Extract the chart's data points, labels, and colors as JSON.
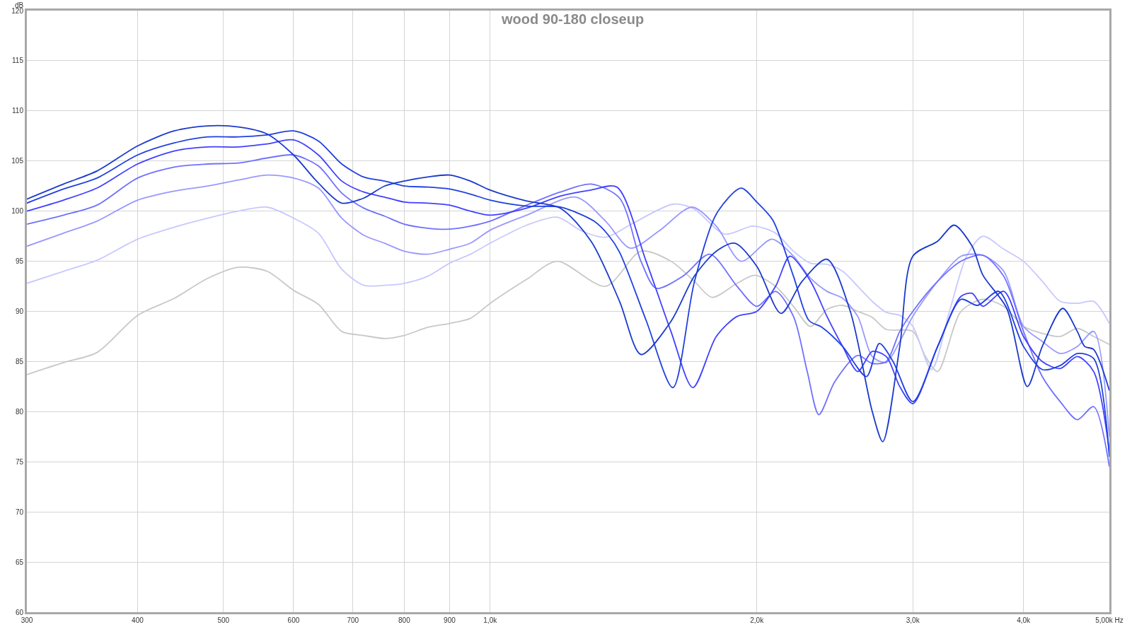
{
  "chart_data": {
    "type": "line",
    "title": "wood 90-180 closeup",
    "ylabel": "dB",
    "log": "x",
    "grid": true,
    "marker": "none",
    "line_style": "solid",
    "xlim": [
      300,
      5000
    ],
    "ylim": [
      60,
      120
    ],
    "xticks": [
      300,
      400,
      500,
      600,
      700,
      800,
      900,
      {
        "value": 1000,
        "label": "1,0k"
      },
      {
        "value": 2000,
        "label": "2,0k"
      },
      {
        "value": 3000,
        "label": "3,0k"
      },
      {
        "value": 4000,
        "label": "4,0k"
      },
      {
        "value": 5000,
        "label": "5,00k Hz"
      }
    ],
    "yticks": [
      60,
      65,
      70,
      75,
      80,
      85,
      90,
      95,
      100,
      105,
      110,
      115,
      120
    ],
    "series": [
      {
        "color": "#c8c8c8",
        "x": [
          300,
          330,
          360,
          400,
          440,
          480,
          520,
          560,
          600,
          640,
          680,
          720,
          760,
          800,
          850,
          900,
          950,
          1000,
          1100,
          1190,
          1350,
          1480,
          1600,
          1700,
          1780,
          1900,
          1990,
          2100,
          2200,
          2300,
          2400,
          2500,
          2600,
          2700,
          2800,
          3000,
          3100,
          3200,
          3400,
          3600,
          3800,
          4000,
          4200,
          4400,
          4600,
          4800,
          5000
        ],
        "values": [
          83.7,
          84.9,
          85.9,
          89.6,
          91.3,
          93.3,
          94.4,
          94.0,
          92.1,
          90.7,
          88.0,
          87.6,
          87.3,
          87.6,
          88.4,
          88.8,
          89.3,
          90.8,
          93.2,
          95.0,
          92.5,
          96.0,
          95.0,
          93.0,
          91.4,
          92.8,
          93.6,
          92.5,
          90.5,
          88.5,
          90.2,
          90.6,
          90.0,
          89.4,
          88.2,
          88.0,
          85.5,
          84.0,
          90.0,
          91.2,
          90.5,
          88.5,
          87.8,
          87.5,
          88.3,
          87.5,
          86.7
        ]
      },
      {
        "color": "#c8c8ff",
        "x": [
          300,
          330,
          360,
          400,
          440,
          480,
          520,
          560,
          600,
          640,
          680,
          720,
          760,
          800,
          850,
          900,
          950,
          1000,
          1100,
          1190,
          1270,
          1350,
          1450,
          1610,
          1700,
          1840,
          1980,
          2100,
          2200,
          2300,
          2400,
          2500,
          2600,
          2700,
          2800,
          2900,
          3000,
          3150,
          3300,
          3450,
          3600,
          3800,
          4000,
          4200,
          4400,
          4600,
          4800,
          5000
        ],
        "values": [
          92.8,
          94.0,
          95.1,
          97.2,
          98.4,
          99.3,
          100.0,
          100.4,
          99.3,
          97.8,
          94.2,
          92.6,
          92.6,
          92.8,
          93.5,
          94.8,
          95.7,
          96.8,
          98.6,
          99.4,
          98.0,
          97.4,
          98.8,
          100.7,
          100.2,
          97.7,
          98.5,
          97.8,
          96.0,
          94.8,
          94.7,
          94.0,
          92.5,
          91.0,
          89.9,
          89.6,
          88.5,
          84.2,
          90.0,
          95.5,
          97.5,
          96.2,
          95.0,
          93.0,
          91.0,
          90.8,
          91.0,
          88.8
        ]
      },
      {
        "color": "#9999ff",
        "x": [
          300,
          330,
          360,
          400,
          440,
          480,
          520,
          560,
          600,
          640,
          680,
          720,
          760,
          800,
          850,
          900,
          950,
          1000,
          1100,
          1250,
          1350,
          1440,
          1550,
          1690,
          1800,
          1920,
          2080,
          2200,
          2300,
          2400,
          2500,
          2600,
          2700,
          2800,
          2900,
          3000,
          3200,
          3400,
          3600,
          3800,
          4000,
          4200,
          4400,
          4600,
          4800,
          5000
        ],
        "values": [
          96.5,
          97.8,
          99.0,
          101.1,
          102.0,
          102.5,
          103.1,
          103.6,
          103.3,
          102.3,
          99.3,
          97.6,
          96.8,
          96.0,
          95.7,
          96.2,
          96.8,
          98.1,
          99.6,
          101.4,
          99.0,
          96.3,
          98.0,
          100.4,
          98.5,
          95.0,
          97.2,
          95.5,
          93.3,
          92.0,
          91.3,
          89.5,
          85.5,
          84.9,
          87.0,
          89.5,
          93.0,
          95.5,
          95.6,
          94.0,
          88.5,
          87.0,
          85.8,
          86.5,
          88.0,
          77.5
        ]
      },
      {
        "color": "#7070ff",
        "x": [
          300,
          330,
          360,
          400,
          440,
          480,
          520,
          560,
          600,
          640,
          680,
          720,
          760,
          800,
          850,
          900,
          950,
          1000,
          1100,
          1200,
          1300,
          1400,
          1480,
          1540,
          1650,
          1770,
          1900,
          2000,
          2100,
          2200,
          2280,
          2350,
          2450,
          2600,
          2700,
          2800,
          2900,
          3000,
          3200,
          3400,
          3600,
          3800,
          4000,
          4200,
          4400,
          4600,
          4800,
          5000
        ],
        "values": [
          98.7,
          99.6,
          100.6,
          103.3,
          104.4,
          104.7,
          104.8,
          105.3,
          105.6,
          104.5,
          101.8,
          100.3,
          99.5,
          98.7,
          98.3,
          98.2,
          98.5,
          99.0,
          100.6,
          101.9,
          102.7,
          101.3,
          95.0,
          92.3,
          93.5,
          95.7,
          92.5,
          90.5,
          92.0,
          89.5,
          84.0,
          79.7,
          83.0,
          85.6,
          84.8,
          85.0,
          88.0,
          90.0,
          93.0,
          95.0,
          95.6,
          93.5,
          88.0,
          83.5,
          81.0,
          79.2,
          80.5,
          74.5
        ]
      },
      {
        "color": "#4040ff",
        "x": [
          300,
          330,
          360,
          400,
          440,
          480,
          520,
          560,
          600,
          640,
          680,
          720,
          760,
          800,
          850,
          900,
          950,
          1000,
          1100,
          1200,
          1300,
          1390,
          1500,
          1600,
          1694,
          1800,
          1900,
          2000,
          2100,
          2180,
          2300,
          2400,
          2500,
          2600,
          2700,
          2800,
          2900,
          3000,
          3200,
          3400,
          3500,
          3600,
          3800,
          4000,
          4200,
          4400,
          4600,
          4800,
          5000
        ],
        "values": [
          100.0,
          101.1,
          102.3,
          104.7,
          106.0,
          106.4,
          106.4,
          106.7,
          107.1,
          105.6,
          103.0,
          101.9,
          101.4,
          100.9,
          100.8,
          100.6,
          100.0,
          99.6,
          100.3,
          101.5,
          102.1,
          102.4,
          95.0,
          88.0,
          82.4,
          87.5,
          89.5,
          90.0,
          92.5,
          95.5,
          93.0,
          89.5,
          86.5,
          84.0,
          86.0,
          85.5,
          82.5,
          80.8,
          86.5,
          91.5,
          91.8,
          90.5,
          92.0,
          87.5,
          85.0,
          84.3,
          85.5,
          84.0,
          76.0
        ]
      },
      {
        "color": "#2040e0",
        "x": [
          300,
          330,
          360,
          400,
          440,
          480,
          520,
          560,
          600,
          640,
          680,
          720,
          760,
          800,
          850,
          900,
          950,
          1000,
          1100,
          1200,
          1310,
          1360,
          1400,
          1500,
          1608,
          1700,
          1800,
          1920,
          2000,
          2085,
          2200,
          2290,
          2370,
          2500,
          2660,
          2750,
          2850,
          3000,
          3200,
          3400,
          3550,
          3750,
          4000,
          4200,
          4400,
          4600,
          4800,
          5000
        ],
        "values": [
          100.8,
          102.2,
          103.3,
          105.6,
          106.8,
          107.4,
          107.4,
          107.6,
          108.0,
          107.0,
          104.7,
          103.4,
          103.0,
          102.5,
          102.4,
          102.2,
          101.7,
          101.1,
          100.5,
          100.4,
          99.0,
          97.6,
          95.9,
          89.1,
          82.4,
          92.9,
          99.7,
          102.3,
          100.9,
          99.1,
          93.5,
          89.1,
          88.4,
          86.5,
          83.5,
          86.8,
          85.0,
          81.0,
          86.5,
          91.2,
          90.6,
          92.0,
          86.5,
          84.2,
          84.6,
          85.8,
          85.3,
          75.5
        ]
      },
      {
        "color": "#1a3acc",
        "x": [
          300,
          330,
          360,
          400,
          440,
          480,
          520,
          560,
          600,
          640,
          680,
          720,
          760,
          800,
          850,
          900,
          950,
          1000,
          1100,
          1200,
          1300,
          1400,
          1480,
          1600,
          1700,
          1800,
          1890,
          2000,
          2130,
          2250,
          2400,
          2550,
          2700,
          2775,
          2900,
          3000,
          3200,
          3340,
          3500,
          3600,
          3830,
          4040,
          4200,
          4430,
          4600,
          4690,
          4800,
          5000
        ],
        "values": [
          101.2,
          102.7,
          104.0,
          106.5,
          108.0,
          108.5,
          108.4,
          107.7,
          105.6,
          102.8,
          100.8,
          101.3,
          102.5,
          103.0,
          103.4,
          103.6,
          103.0,
          102.1,
          101.0,
          100.3,
          97.0,
          91.0,
          85.7,
          89.0,
          93.5,
          96.0,
          96.8,
          94.5,
          89.8,
          93.0,
          95.2,
          90.0,
          80.0,
          77.0,
          86.5,
          95.5,
          97.0,
          98.6,
          96.5,
          93.6,
          90.3,
          82.5,
          86.5,
          90.3,
          88.0,
          86.5,
          86.2,
          82.1
        ]
      }
    ]
  }
}
